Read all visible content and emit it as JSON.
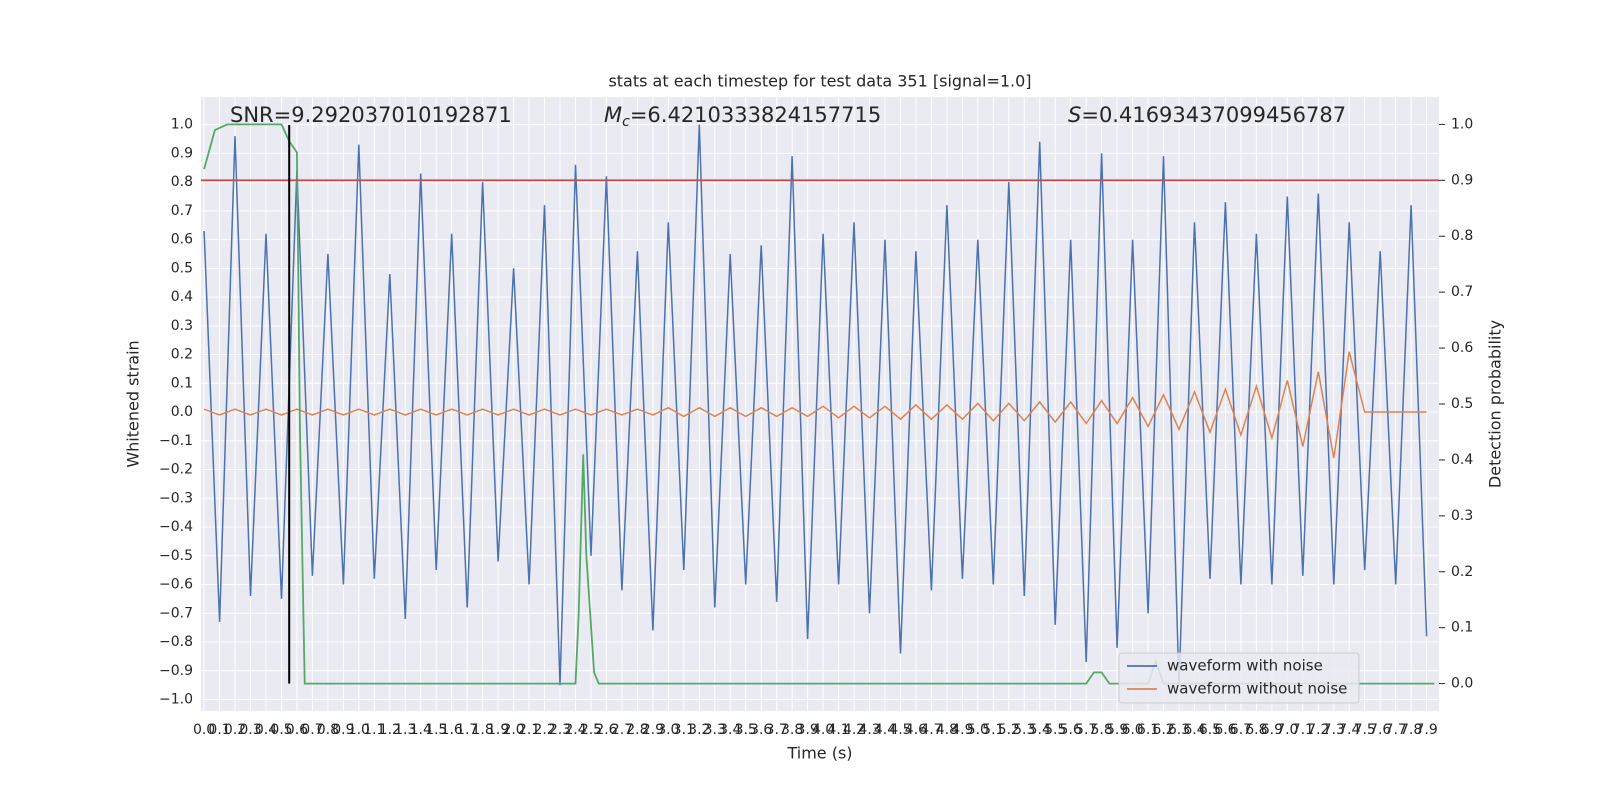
{
  "chart_data": {
    "type": "line",
    "title": "stats at each timestep for test data 351 [signal=1.0]",
    "xlabel": "Time (s)",
    "ylabel": "Whitened strain",
    "y2label": "Detection probability",
    "annotations": [
      {
        "text": "SNR=9.292037010192871"
      },
      {
        "symbol": "M",
        "subscript": "c",
        "text": "=6.4210333824157715"
      },
      {
        "symbol": "S",
        "text": "=0.41693437099456787"
      }
    ],
    "xlim": [
      -0.02,
      7.98
    ],
    "ylim": [
      -1.04,
      1.096
    ],
    "y2lim": [
      -0.049,
      1.049
    ],
    "grid": true,
    "legend": "lower right",
    "xticks": [
      {
        "value": 0,
        "label": "0.0"
      },
      0.1,
      0.2,
      0.3,
      0.4,
      0.5,
      0.6,
      0.7,
      0.8,
      0.9,
      {
        "value": 1,
        "label": "1.0"
      },
      1.1,
      1.2,
      1.3,
      1.4,
      1.5,
      1.6,
      1.7,
      1.8,
      1.9,
      {
        "value": 2,
        "label": "2.0"
      },
      2.1,
      2.2,
      2.3,
      2.4,
      2.5,
      2.6,
      2.7,
      2.8,
      2.9,
      {
        "value": 3,
        "label": "3.0"
      },
      3.1,
      3.2,
      3.3,
      3.4,
      3.5,
      3.6,
      3.7,
      3.8,
      3.9,
      {
        "value": 4,
        "label": "4.0"
      },
      4.1,
      4.2,
      4.3,
      4.4,
      4.5,
      4.6,
      4.7,
      4.8,
      4.9,
      {
        "value": 5,
        "label": "5.0"
      },
      5.1,
      5.2,
      5.3,
      5.4,
      5.5,
      5.6,
      5.7,
      5.8,
      5.9,
      {
        "value": 6,
        "label": "6.0"
      },
      6.1,
      6.2,
      6.3,
      6.4,
      6.5,
      6.6,
      6.7,
      6.8,
      6.9,
      {
        "value": 7,
        "label": "7.0"
      },
      7.1,
      7.2,
      7.3,
      7.4,
      7.5,
      7.6,
      7.7,
      7.8,
      7.9
    ],
    "yticks": [
      {
        "value": -1,
        "label": "−1.0"
      },
      {
        "value": -0.9,
        "label": "−0.9"
      },
      {
        "value": -0.8,
        "label": "−0.8"
      },
      {
        "value": -0.7,
        "label": "−0.7"
      },
      {
        "value": -0.6,
        "label": "−0.6"
      },
      {
        "value": -0.5,
        "label": "−0.5"
      },
      {
        "value": -0.4,
        "label": "−0.4"
      },
      {
        "value": -0.3,
        "label": "−0.3"
      },
      {
        "value": -0.2,
        "label": "−0.2"
      },
      {
        "value": -0.1,
        "label": "−0.1"
      },
      {
        "value": 0,
        "label": "0.0"
      },
      0.1,
      0.2,
      0.3,
      0.4,
      0.5,
      0.6,
      0.7,
      0.8,
      0.9,
      {
        "value": 1,
        "label": "1.0"
      }
    ],
    "y2ticks": [
      {
        "value": 0,
        "label": "0.0"
      },
      0.1,
      0.2,
      0.3,
      0.4,
      0.5,
      0.6,
      0.7,
      0.8,
      0.9,
      {
        "value": 1,
        "label": "1.0"
      }
    ],
    "x": [
      0,
      0.1,
      0.2,
      0.3,
      0.4,
      0.5,
      0.6,
      0.7,
      0.8,
      0.9,
      1,
      1.1,
      1.2,
      1.3,
      1.4,
      1.5,
      1.6,
      1.7,
      1.8,
      1.9,
      2,
      2.1,
      2.2,
      2.3,
      2.4,
      2.5,
      2.6,
      2.7,
      2.8,
      2.9,
      3,
      3.1,
      3.2,
      3.3,
      3.4,
      3.5,
      3.6,
      3.7,
      3.8,
      3.9,
      4,
      4.1,
      4.2,
      4.3,
      4.4,
      4.5,
      4.6,
      4.7,
      4.8,
      4.9,
      5,
      5.1,
      5.2,
      5.3,
      5.4,
      5.5,
      5.6,
      5.7,
      5.8,
      5.9,
      6,
      6.1,
      6.2,
      6.3,
      6.4,
      6.5,
      6.6,
      6.7,
      6.8,
      6.9,
      7,
      7.1,
      7.2,
      7.3,
      7.4,
      7.5,
      7.6,
      7.7,
      7.8,
      7.9
    ],
    "series": [
      {
        "name": "waveform with noise",
        "color": "#4c72b0",
        "values": [
          0.63,
          -0.73,
          0.96,
          -0.64,
          0.62,
          -0.65,
          0.84,
          -0.57,
          0.55,
          -0.6,
          0.93,
          -0.58,
          0.48,
          -0.72,
          0.83,
          -0.55,
          0.62,
          -0.68,
          0.8,
          -0.52,
          0.5,
          -0.6,
          0.72,
          -0.95,
          0.86,
          -0.5,
          0.82,
          -0.62,
          0.56,
          -0.76,
          0.66,
          -0.55,
          1.0,
          -0.68,
          0.55,
          -0.6,
          0.58,
          -0.66,
          0.89,
          -0.79,
          0.62,
          -0.6,
          0.66,
          -0.7,
          0.6,
          -0.84,
          0.56,
          -0.62,
          0.72,
          -0.58,
          0.6,
          -0.6,
          0.8,
          -0.64,
          0.94,
          -0.74,
          0.6,
          -0.87,
          0.9,
          -0.82,
          0.6,
          -0.7,
          0.89,
          -0.95,
          0.66,
          -0.58,
          0.73,
          -0.6,
          0.62,
          -0.6,
          0.75,
          -0.57,
          0.76,
          -0.6,
          0.66,
          -0.55,
          0.56,
          -0.6,
          0.72,
          -0.78
        ]
      },
      {
        "name": "waveform without noise",
        "color": "#dd8452",
        "values": [
          0.01,
          -0.01,
          0.01,
          -0.01,
          0.01,
          -0.01,
          0.01,
          -0.01,
          0.01,
          -0.01,
          0.01,
          -0.01,
          0.01,
          -0.01,
          0.01,
          -0.01,
          0.01,
          -0.01,
          0.01,
          -0.01,
          0.01,
          -0.01,
          0.01,
          -0.01,
          0.01,
          -0.01,
          0.01,
          -0.01,
          0.01,
          -0.01,
          0.015,
          -0.015,
          0.015,
          -0.015,
          0.015,
          -0.015,
          0.015,
          -0.015,
          0.015,
          -0.015,
          0.02,
          -0.02,
          0.02,
          -0.02,
          0.02,
          -0.025,
          0.025,
          -0.025,
          0.025,
          -0.025,
          0.03,
          -0.03,
          0.03,
          -0.03,
          0.035,
          -0.035,
          0.035,
          -0.04,
          0.04,
          -0.04,
          0.05,
          -0.05,
          0.06,
          -0.06,
          0.07,
          -0.07,
          0.08,
          -0.08,
          0.09,
          -0.09,
          0.11,
          -0.12,
          0.14,
          -0.16,
          0.21,
          0,
          0,
          0,
          0,
          0
        ]
      }
    ],
    "detection_probability": {
      "color": "#55a868",
      "axis": "y2",
      "x": [
        0,
        0.07,
        0.15,
        0.5,
        0.55,
        0.6,
        0.62,
        0.65,
        0.7,
        2.3,
        2.35,
        2.4,
        2.42,
        2.45,
        2.47,
        2.52,
        2.55,
        5.7,
        5.75,
        5.8,
        5.85,
        5.9,
        6.1,
        6.15,
        6.2,
        7.95
      ],
      "values": [
        0.92,
        0.99,
        1.0,
        1.0,
        0.97,
        0.95,
        0.45,
        0.0,
        0.0,
        0.0,
        0.0,
        0.0,
        0.12,
        0.41,
        0.23,
        0.02,
        0.0,
        0.0,
        0.02,
        0.02,
        0.0,
        0.0,
        0.0,
        0.04,
        0.0,
        0.0
      ]
    },
    "threshold": {
      "value": 0.9,
      "color": "#c44e52",
      "axis": "y2"
    },
    "marker_x": 0.55
  }
}
